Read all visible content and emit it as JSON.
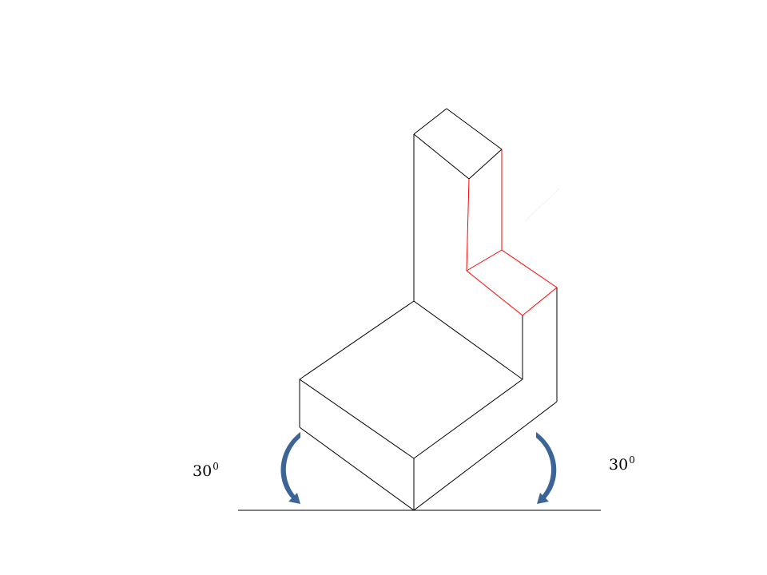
{
  "labels": {
    "left_angle": {
      "value": "30",
      "exponent": "0"
    },
    "right_angle": {
      "value": "30",
      "exponent": "0"
    }
  },
  "colors": {
    "edge": "#000000",
    "highlight_edge": "#ff0000",
    "arrow": "#3d6496"
  }
}
